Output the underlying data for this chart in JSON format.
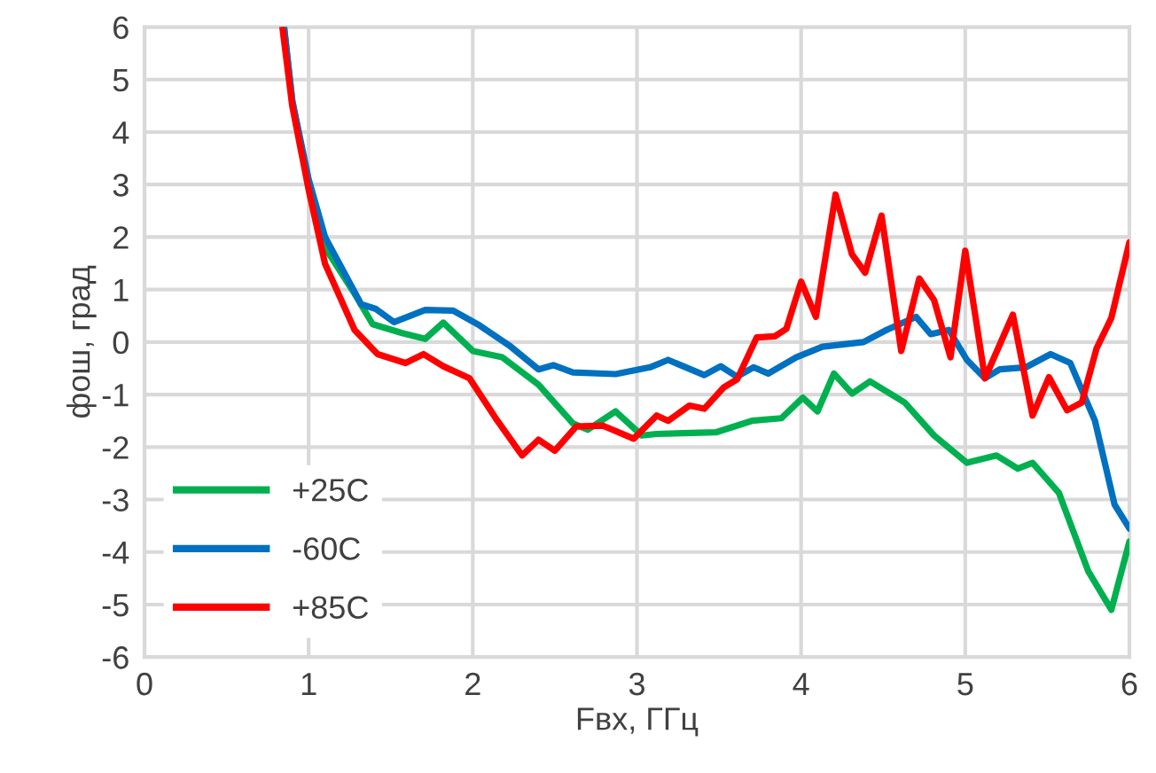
{
  "chart_data": {
    "type": "line",
    "xlabel": "Fвх, ГГц",
    "ylabel": "фош, град",
    "xlim": [
      0,
      6
    ],
    "xticks": [
      0,
      1,
      2,
      3,
      4,
      5,
      6
    ],
    "ylim": [
      -6,
      6
    ],
    "yticks": [
      -6,
      -5,
      -4,
      -3,
      -2,
      -1,
      0,
      1,
      2,
      3,
      4,
      5,
      6
    ],
    "grid": true,
    "legend": "bottom left",
    "marker": "none",
    "line_style": "solid",
    "series": [
      {
        "name": "+25C",
        "color": "#00b050",
        "x": [
          0.85,
          0.9,
          1.0,
          1.1,
          1.28,
          1.39,
          1.57,
          1.71,
          1.82,
          2.0,
          2.18,
          2.4,
          2.61,
          2.7,
          2.87,
          3.03,
          3.12,
          3.48,
          3.7,
          3.88,
          4.01,
          4.1,
          4.2,
          4.31,
          4.42,
          4.63,
          4.81,
          5.01,
          5.19,
          5.32,
          5.41,
          5.57,
          5.75,
          5.89,
          6.0
        ],
        "values": [
          6,
          4.6,
          3.0,
          1.8,
          0.92,
          0.34,
          0.17,
          0.06,
          0.37,
          -0.17,
          -0.29,
          -0.81,
          -1.55,
          -1.67,
          -1.32,
          -1.78,
          -1.75,
          -1.72,
          -1.5,
          -1.45,
          -1.06,
          -1.32,
          -0.6,
          -0.98,
          -0.75,
          -1.15,
          -1.78,
          -2.3,
          -2.16,
          -2.41,
          -2.3,
          -2.87,
          -4.37,
          -5.1,
          -3.8
        ]
      },
      {
        "name": "-60C",
        "color": "#0070c0",
        "x": [
          0.85,
          0.9,
          1.0,
          1.1,
          1.32,
          1.41,
          1.52,
          1.71,
          1.88,
          2.04,
          2.22,
          2.4,
          2.49,
          2.61,
          2.87,
          3.08,
          3.19,
          3.41,
          3.51,
          3.61,
          3.71,
          3.8,
          3.97,
          4.13,
          4.38,
          4.52,
          4.7,
          4.79,
          4.9,
          5.01,
          5.12,
          5.21,
          5.37,
          5.52,
          5.64,
          5.79,
          5.91,
          6.0
        ],
        "values": [
          6,
          4.6,
          3.1,
          2.0,
          0.72,
          0.63,
          0.38,
          0.61,
          0.6,
          0.32,
          -0.06,
          -0.52,
          -0.44,
          -0.58,
          -0.61,
          -0.48,
          -0.34,
          -0.63,
          -0.46,
          -0.66,
          -0.48,
          -0.6,
          -0.29,
          -0.09,
          0.0,
          0.23,
          0.48,
          0.15,
          0.23,
          -0.34,
          -0.69,
          -0.52,
          -0.48,
          -0.23,
          -0.4,
          -1.5,
          -3.1,
          -3.55
        ]
      },
      {
        "name": "+85C",
        "color": "#ff0000",
        "x": [
          0.84,
          0.9,
          1.0,
          1.1,
          1.28,
          1.42,
          1.59,
          1.7,
          1.82,
          1.98,
          2.15,
          2.3,
          2.4,
          2.5,
          2.63,
          2.79,
          2.98,
          3.12,
          3.19,
          3.32,
          3.41,
          3.53,
          3.61,
          3.73,
          3.84,
          3.91,
          4.0,
          4.09,
          4.21,
          4.31,
          4.39,
          4.49,
          4.61,
          4.72,
          4.81,
          4.91,
          5.0,
          5.12,
          5.29,
          5.41,
          5.51,
          5.62,
          5.71,
          5.8,
          5.89,
          6.0
        ],
        "values": [
          6,
          4.5,
          2.9,
          1.49,
          0.23,
          -0.23,
          -0.4,
          -0.23,
          -0.46,
          -0.69,
          -1.5,
          -2.16,
          -1.86,
          -2.07,
          -1.61,
          -1.59,
          -1.84,
          -1.4,
          -1.5,
          -1.21,
          -1.27,
          -0.86,
          -0.71,
          0.09,
          0.11,
          0.25,
          1.15,
          0.48,
          2.81,
          1.67,
          1.32,
          2.41,
          -0.17,
          1.21,
          0.8,
          -0.29,
          1.74,
          -0.69,
          0.52,
          -1.4,
          -0.67,
          -1.3,
          -1.15,
          -0.12,
          0.46,
          1.9
        ]
      }
    ]
  }
}
